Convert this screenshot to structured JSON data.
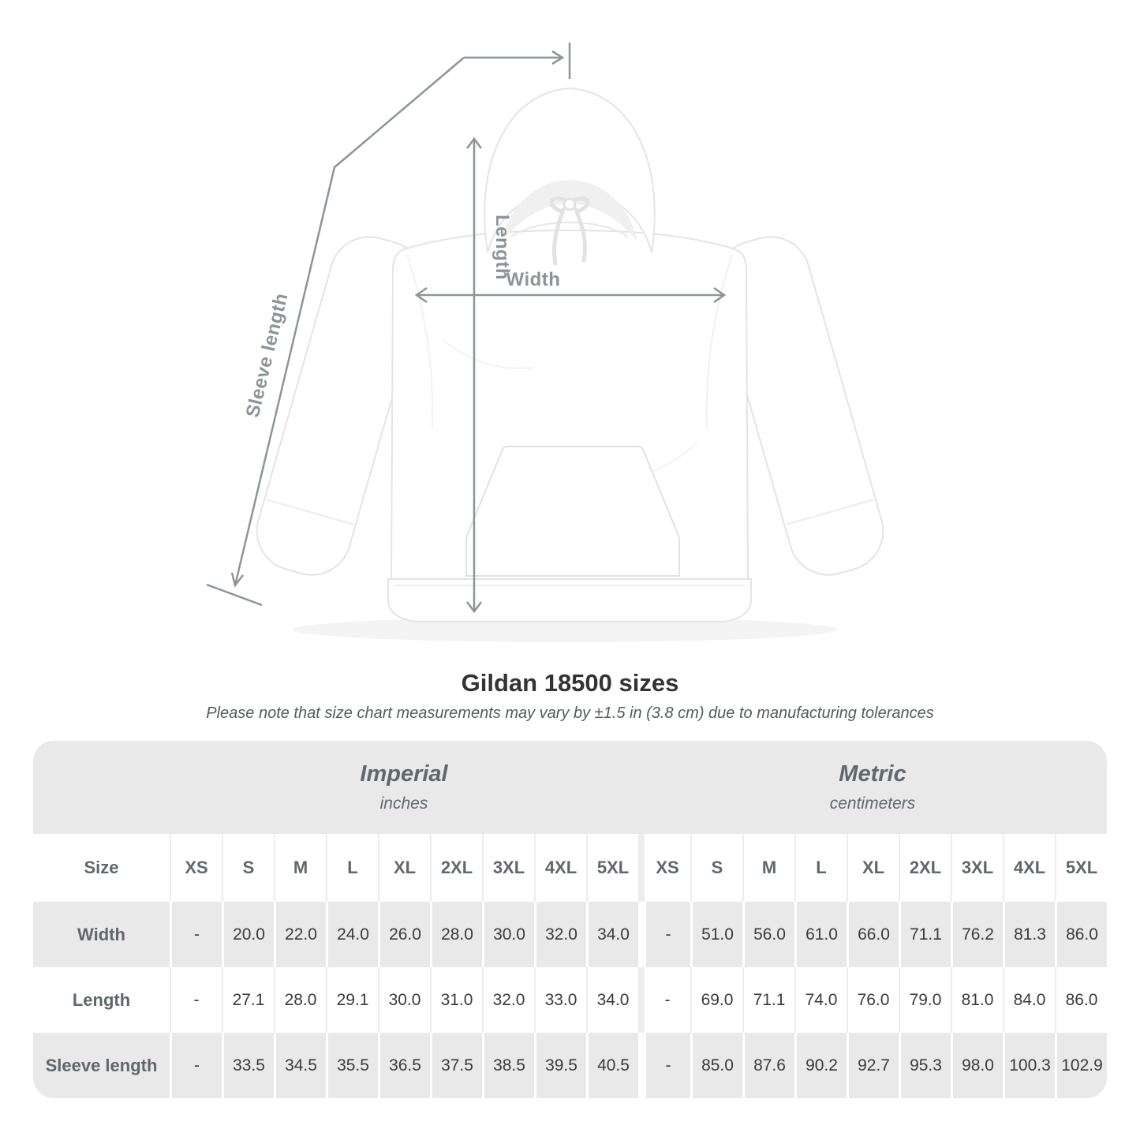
{
  "title": "Gildan 18500 sizes",
  "note": "Please note that size chart measurements may vary by ±1.5 in (3.8 cm) due to manufacturing tolerances",
  "diagram": {
    "length_label": "Length",
    "width_label": "Width",
    "sleeve_label": "Sleeve length"
  },
  "table": {
    "corner_label": "Size",
    "unit_groups": [
      {
        "name": "Imperial",
        "unit": "inches"
      },
      {
        "name": "Metric",
        "unit": "centimeters"
      }
    ],
    "sizes": [
      "XS",
      "S",
      "M",
      "L",
      "XL",
      "2XL",
      "3XL",
      "4XL",
      "5XL"
    ],
    "rows": [
      {
        "label": "Width",
        "imperial": [
          "-",
          "20.0",
          "22.0",
          "24.0",
          "26.0",
          "28.0",
          "30.0",
          "32.0",
          "34.0"
        ],
        "metric": [
          "-",
          "51.0",
          "56.0",
          "61.0",
          "66.0",
          "71.1",
          "76.2",
          "81.3",
          "86.0"
        ]
      },
      {
        "label": "Length",
        "imperial": [
          "-",
          "27.1",
          "28.0",
          "29.1",
          "30.0",
          "31.0",
          "32.0",
          "33.0",
          "34.0"
        ],
        "metric": [
          "-",
          "69.0",
          "71.1",
          "74.0",
          "76.0",
          "79.0",
          "81.0",
          "84.0",
          "86.0"
        ]
      },
      {
        "label": "Sleeve length",
        "imperial": [
          "-",
          "33.5",
          "34.5",
          "35.5",
          "36.5",
          "37.5",
          "38.5",
          "39.5",
          "40.5"
        ],
        "metric": [
          "-",
          "85.0",
          "87.6",
          "90.2",
          "92.7",
          "95.3",
          "98.0",
          "100.3",
          "102.9"
        ]
      }
    ]
  },
  "colors": {
    "measure_line": "#8e9499",
    "measure_label": "#8d9499",
    "table_band": "#e9e9e9",
    "header_text": "#60676b",
    "value_text": "#3b3b3b"
  }
}
